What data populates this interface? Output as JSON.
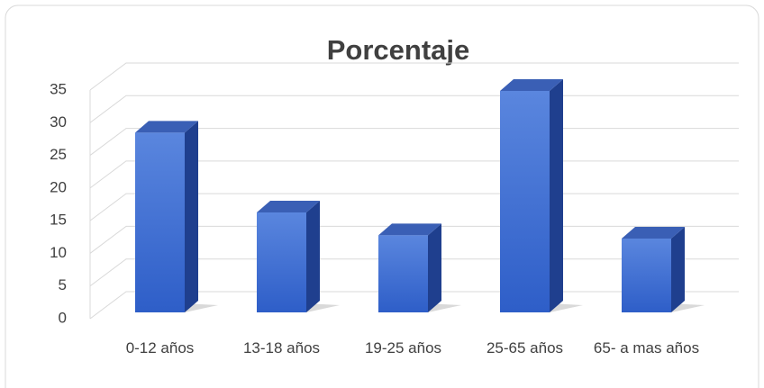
{
  "chart_data": {
    "type": "bar",
    "title": "Porcentaje",
    "categories": [
      "0-12 años",
      "13-18 años",
      "19-25 años",
      "25-65 años",
      "65- a mas años"
    ],
    "values": [
      27.5,
      15.3,
      11.8,
      33.9,
      11.3
    ],
    "color": "#3a68cc",
    "ylim": [
      0,
      35
    ],
    "yticks": [
      0,
      5,
      10,
      15,
      20,
      25,
      30,
      35
    ],
    "grid": true
  }
}
